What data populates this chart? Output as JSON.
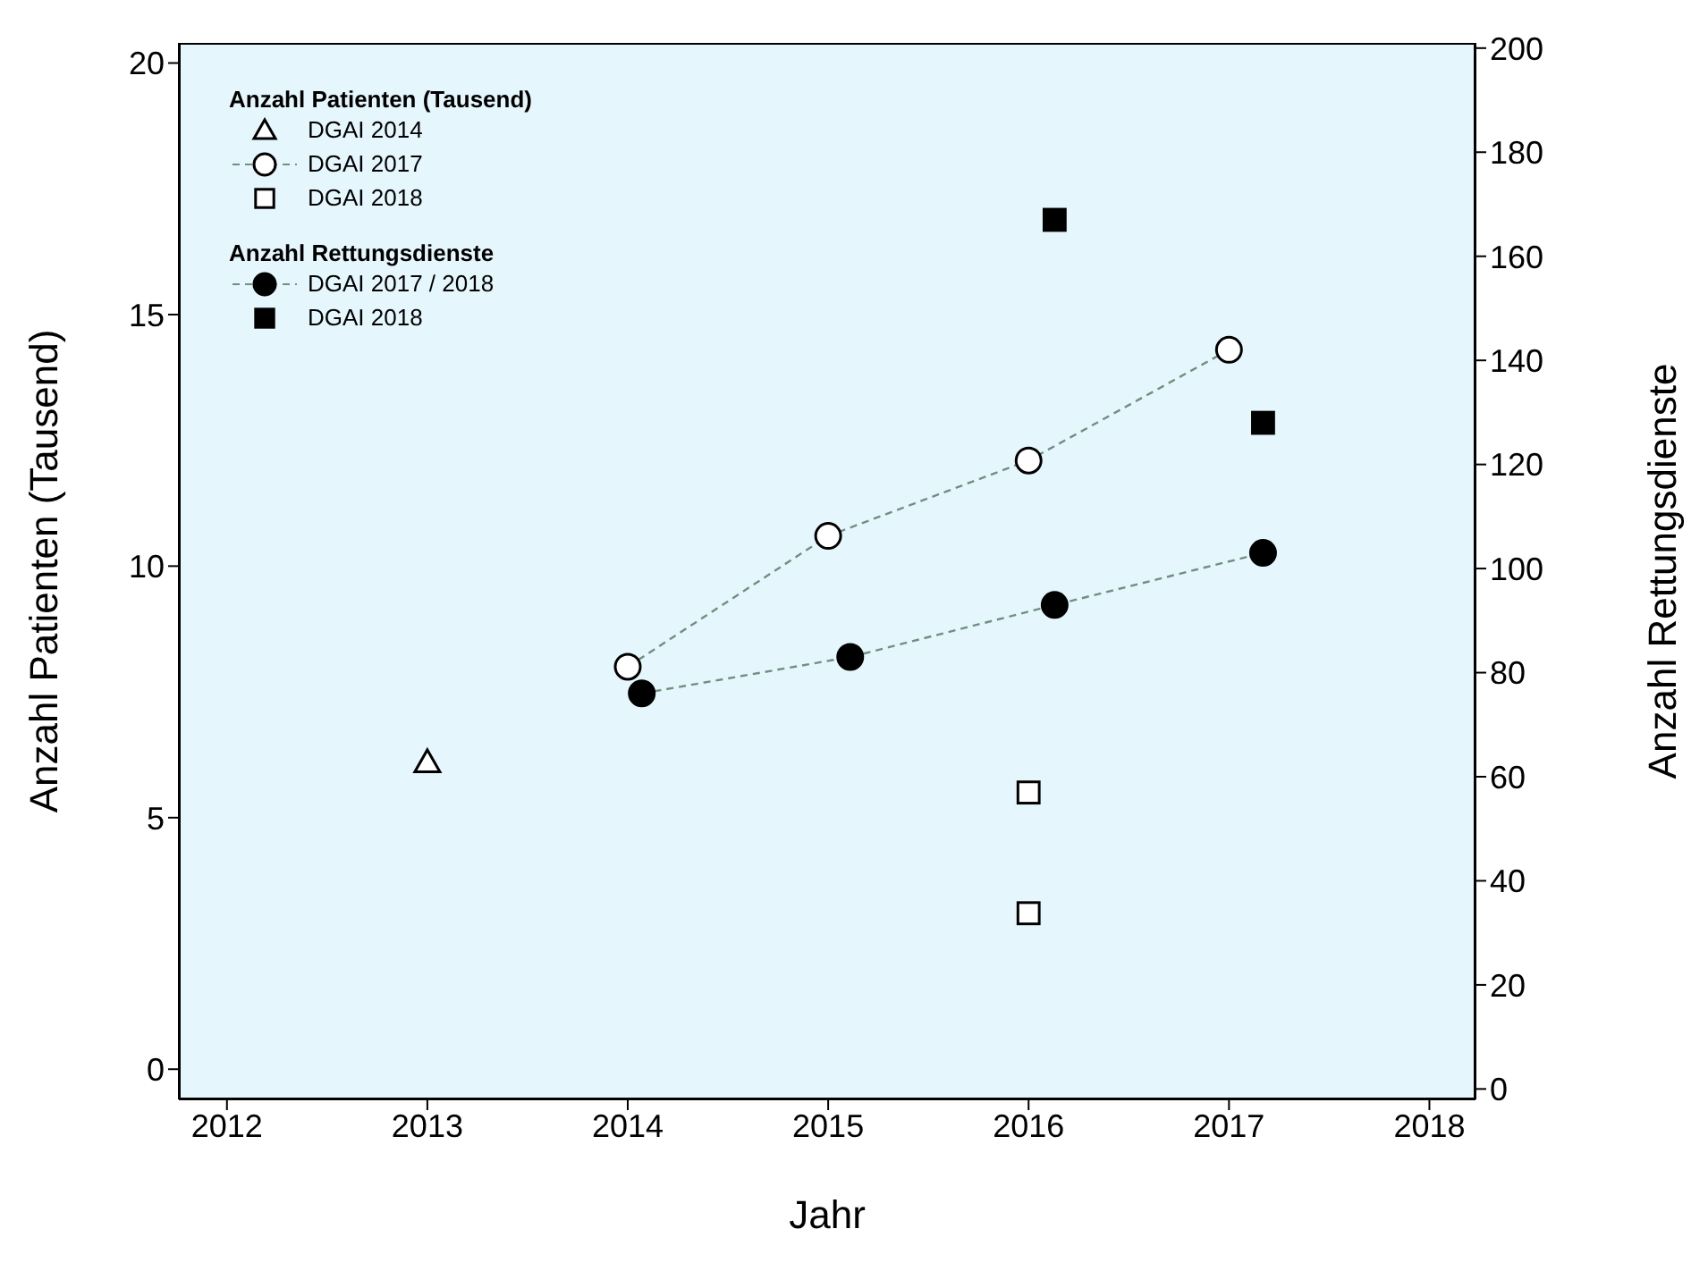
{
  "chart_data": {
    "type": "scatter",
    "xlabel": "Jahr",
    "ylabel": "Anzahl Patienten (Tausend)",
    "y2label": "Anzahl Rettungsdienste",
    "xlim": [
      2011.76,
      2018.23
    ],
    "xticks": [
      2012,
      2013,
      2014,
      2015,
      2016,
      2017,
      2018
    ],
    "ylim": [
      -0.6,
      20.4
    ],
    "yticks": [
      0,
      5,
      10,
      15,
      20
    ],
    "y2lim": [
      -2,
      201
    ],
    "y2ticks": [
      0,
      20,
      40,
      60,
      80,
      100,
      120,
      140,
      160,
      180,
      200
    ],
    "legend": "top left",
    "legend_title": [
      "Anzahl Patienten (Tausend)",
      "Anzahl Rettungsdienste"
    ],
    "grid": false,
    "series": [
      {
        "name": "DGAI 2014",
        "marker": "triangle",
        "color": "#ffffff",
        "x": [
          2013
        ],
        "values": [
          6.1
        ]
      },
      {
        "name": "DGAI 2017",
        "type": "line",
        "marker": "circle",
        "line_style": "dashed",
        "color": "#ffffff",
        "x": [
          2014,
          2015,
          2016,
          2017
        ],
        "values": [
          8.0,
          10.6,
          12.1,
          14.3
        ]
      },
      {
        "name": "DGAI 2018",
        "marker": "square",
        "color": "#ffffff",
        "x": [
          2016,
          2016
        ],
        "values": [
          5.5,
          3.1
        ]
      },
      {
        "name": "DGAI 2017 / 2018",
        "type": "line",
        "marker": "circle",
        "line_style": "dashed",
        "color": "#000000",
        "axis": "y2",
        "x": [
          2014.07,
          2015.11,
          2016.13,
          2017.17
        ],
        "values": [
          76,
          83,
          93,
          103
        ]
      },
      {
        "name": "DGAI 2018",
        "marker": "square",
        "color": "#000000",
        "axis": "y2",
        "x": [
          2016.13,
          2017.17
        ],
        "values": [
          167,
          128
        ]
      }
    ]
  }
}
